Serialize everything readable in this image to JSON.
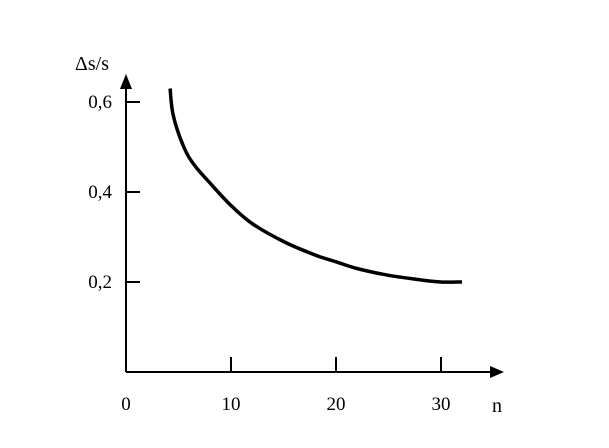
{
  "chart_data": {
    "type": "line",
    "title": "",
    "xlabel": "n",
    "ylabel": "Δs/s",
    "origin_label": "0",
    "xlim": [
      0,
      35
    ],
    "ylim": [
      0,
      0.7
    ],
    "x_ticks": [
      {
        "value": 10,
        "label": "10"
      },
      {
        "value": 20,
        "label": "20"
      },
      {
        "value": 30,
        "label": "30"
      }
    ],
    "y_ticks": [
      {
        "value": 0.2,
        "label": "0,2"
      },
      {
        "value": 0.4,
        "label": "0,4"
      },
      {
        "value": 0.6,
        "label": "0,6"
      }
    ],
    "grid": false,
    "legend": "none",
    "series": [
      {
        "x": [
          4.2,
          4.5,
          5.5,
          6.5,
          8,
          10,
          12,
          15,
          18,
          20,
          22,
          25,
          28,
          30,
          32
        ],
        "y": [
          0.63,
          0.57,
          0.5,
          0.46,
          0.42,
          0.37,
          0.33,
          0.29,
          0.26,
          0.245,
          0.23,
          0.215,
          0.205,
          0.2,
          0.2
        ]
      }
    ],
    "colors": {
      "line": "#000000",
      "axis": "#000000"
    }
  }
}
